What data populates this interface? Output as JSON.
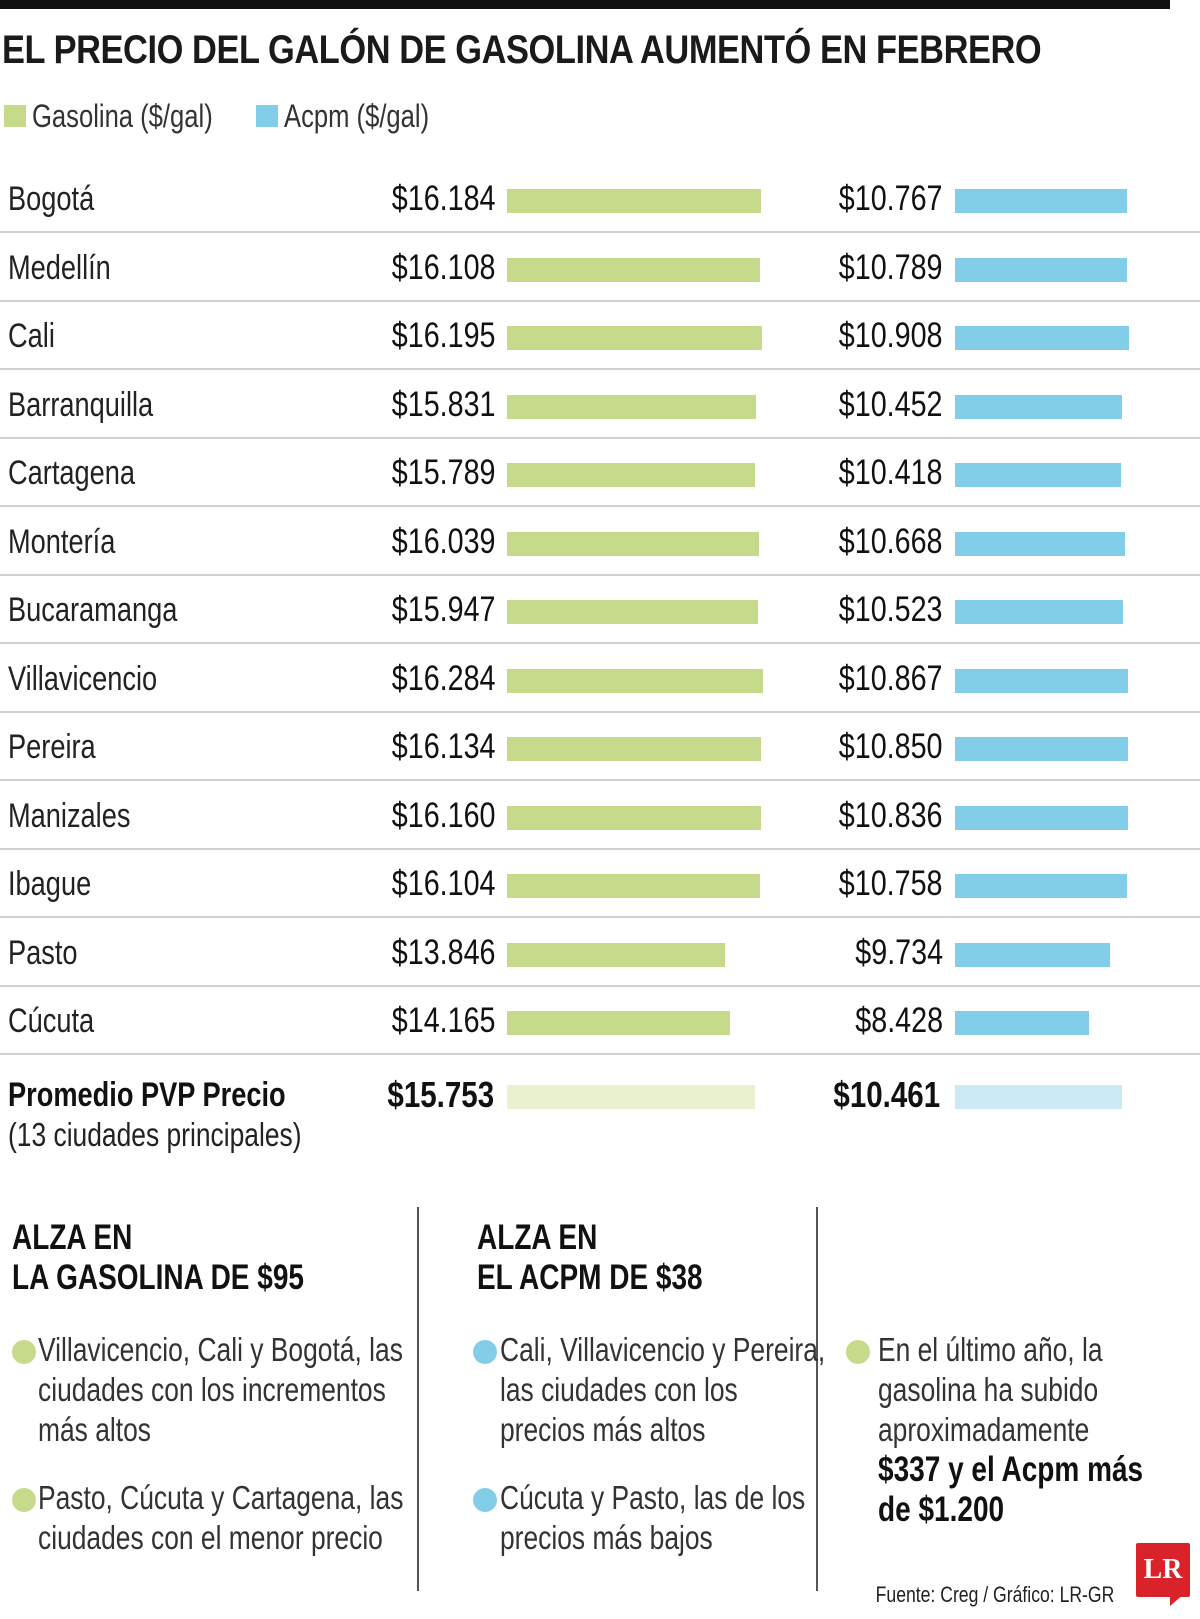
{
  "title": "EL PRECIO DEL GALÓN DE GASOLINA AUMENTÓ EN FEBRERO",
  "colors": {
    "gasolina": "#c7da8c",
    "acpm": "#82cde8",
    "gasolina_avg": "#eaf1cf",
    "acpm_avg": "#cbeaf5",
    "logo": "#d9222a"
  },
  "chart_data": {
    "type": "bar",
    "orientation": "horizontal",
    "categories": [
      "Bogotá",
      "Medellín",
      "Cali",
      "Barranquilla",
      "Cartagena",
      "Montería",
      "Bucaramanga",
      "Villavicencio",
      "Pereira",
      "Manizales",
      "Ibague",
      "Pasto",
      "Cúcuta"
    ],
    "series": [
      {
        "name": "Gasolina ($/gal)",
        "values": [
          16184,
          16108,
          16195,
          15831,
          15789,
          16039,
          15947,
          16284,
          16134,
          16160,
          16104,
          13846,
          14165
        ],
        "labels": [
          "$16.184",
          "$16.108",
          "$16.195",
          "$15.831",
          "$15.789",
          "$16.039",
          "$15.947",
          "$16.284",
          "$16.134",
          "$16.160",
          "$16.104",
          "$13.846",
          "$14.165"
        ]
      },
      {
        "name": "Acpm ($/gal)",
        "values": [
          10767,
          10789,
          10908,
          10452,
          10418,
          10668,
          10523,
          10867,
          10850,
          10836,
          10758,
          9734,
          8428
        ],
        "labels": [
          "$10.767",
          "$10.789",
          "$10.908",
          "$10.452",
          "$10.418",
          "$10.668",
          "$10.523",
          "$10.867",
          "$10.850",
          "$10.836",
          "$10.758",
          "$9.734",
          "$8.428"
        ]
      }
    ],
    "average": {
      "label": "Promedio PVP Precio",
      "sublabel": "(13 ciudades principales)",
      "gasolina": 15753,
      "gasolina_label": "$15.753",
      "acpm": 10461,
      "acpm_label": "$10.461"
    },
    "legend": "top-left",
    "grid": false
  },
  "notes": {
    "gasolina": {
      "heading": [
        "ALZA EN",
        "LA GASOLINA DE $95"
      ],
      "bullets": [
        [
          "Villavicencio, Cali y Bogotá, las",
          "ciudades con los incrementos",
          "más altos"
        ],
        [
          "Pasto, Cúcuta y Cartagena, las",
          "ciudades con el menor precio"
        ]
      ]
    },
    "acpm": {
      "heading": [
        "ALZA EN",
        "EL ACPM DE $38"
      ],
      "bullets": [
        [
          "Cali, Villavicencio y Pereira,",
          "las ciudades con los",
          "precios más altos"
        ],
        [
          "Cúcuta y Pasto, las de los",
          "precios más bajos"
        ]
      ]
    },
    "year": {
      "lines": [
        "En el último año, la",
        "gasolina ha subido",
        "aproximadamente"
      ],
      "bold_lines": [
        "$337 y el Acpm más",
        "de $1.200"
      ]
    }
  },
  "source": "Fuente: Creg / Gráfico: LR-GR",
  "logo_text": "LR"
}
